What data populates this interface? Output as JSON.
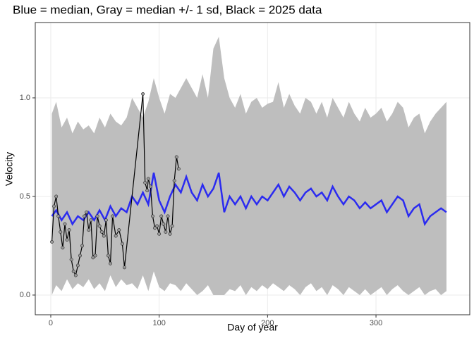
{
  "chart_data": {
    "type": "line",
    "title": "Blue = median, Gray = median +/- 1 sd, Black = 2025 data",
    "x_label": "Day of year",
    "y_label": "Velocity",
    "xlim": [
      -14.3,
      386.5
    ],
    "ylim": [
      -0.1,
      1.382
    ],
    "xticks": [
      0,
      100,
      200,
      300
    ],
    "yticks": [
      {
        "value": 0,
        "label": "0.0"
      },
      {
        "value": 0.5,
        "label": "0.5"
      },
      {
        "value": 1,
        "label": "1.0"
      }
    ],
    "grid": true,
    "days": [
      1,
      5,
      10,
      15,
      20,
      25,
      30,
      35,
      40,
      45,
      50,
      55,
      60,
      65,
      70,
      75,
      80,
      85,
      90,
      95,
      100,
      105,
      110,
      115,
      120,
      125,
      130,
      135,
      140,
      145,
      150,
      155,
      160,
      165,
      170,
      175,
      180,
      185,
      190,
      195,
      200,
      205,
      210,
      215,
      220,
      225,
      230,
      235,
      240,
      245,
      250,
      255,
      260,
      265,
      270,
      275,
      280,
      285,
      290,
      295,
      300,
      305,
      310,
      315,
      320,
      325,
      330,
      335,
      340,
      345,
      350,
      355,
      360,
      365
    ],
    "band": {
      "color": "#bebebe",
      "upper": [
        0.92,
        0.98,
        0.85,
        0.9,
        0.82,
        0.88,
        0.84,
        0.86,
        0.82,
        0.9,
        0.85,
        0.92,
        0.88,
        0.86,
        0.9,
        1.0,
        0.95,
        0.9,
        0.98,
        1.1,
        1.0,
        0.92,
        1.02,
        1.0,
        1.05,
        1.1,
        1.05,
        1.0,
        1.12,
        1.0,
        1.25,
        1.31,
        1.1,
        1.0,
        0.95,
        1.02,
        0.92,
        0.98,
        1.0,
        0.95,
        0.97,
        0.98,
        1.08,
        0.95,
        1.02,
        0.96,
        0.92,
        1.0,
        0.98,
        0.92,
        0.98,
        0.9,
        1.0,
        0.95,
        0.9,
        0.98,
        0.92,
        0.88,
        0.95,
        0.9,
        0.92,
        0.95,
        0.88,
        0.92,
        0.98,
        0.95,
        0.85,
        0.9,
        0.92,
        0.82,
        0.88,
        0.92,
        0.95,
        0.98
      ],
      "lower": [
        0.0,
        0.05,
        0.02,
        0.08,
        0.03,
        0.06,
        0.04,
        0.08,
        0.03,
        0.06,
        0.02,
        0.1,
        0.04,
        0.08,
        0.05,
        0.06,
        0.03,
        0.1,
        0.02,
        0.12,
        0.04,
        0.02,
        0.06,
        0.05,
        0.02,
        0.06,
        0.03,
        0.0,
        0.02,
        0.05,
        0.0,
        0.0,
        0.0,
        0.03,
        0.02,
        0.05,
        0.0,
        0.04,
        0.02,
        0.05,
        0.03,
        0.06,
        0.04,
        0.02,
        0.05,
        0.03,
        0.0,
        0.04,
        0.06,
        0.02,
        0.04,
        0.0,
        0.05,
        0.03,
        0.0,
        0.04,
        0.02,
        0.0,
        0.03,
        0.0,
        0.02,
        0.04,
        0.0,
        0.03,
        0.05,
        0.02,
        0.0,
        0.02,
        0.04,
        0.0,
        0.02,
        0.03,
        0.0,
        0.02
      ]
    },
    "median": {
      "color": "#2b2bf0",
      "values": [
        0.4,
        0.43,
        0.38,
        0.42,
        0.36,
        0.4,
        0.38,
        0.42,
        0.38,
        0.43,
        0.38,
        0.45,
        0.4,
        0.44,
        0.42,
        0.5,
        0.46,
        0.52,
        0.46,
        0.62,
        0.48,
        0.42,
        0.5,
        0.56,
        0.52,
        0.6,
        0.52,
        0.48,
        0.56,
        0.5,
        0.54,
        0.62,
        0.42,
        0.5,
        0.46,
        0.5,
        0.44,
        0.5,
        0.46,
        0.5,
        0.48,
        0.52,
        0.56,
        0.5,
        0.55,
        0.52,
        0.48,
        0.52,
        0.54,
        0.5,
        0.52,
        0.48,
        0.55,
        0.5,
        0.46,
        0.5,
        0.48,
        0.44,
        0.47,
        0.44,
        0.46,
        0.48,
        0.42,
        0.46,
        0.5,
        0.48,
        0.4,
        0.44,
        0.46,
        0.36,
        0.4,
        0.42,
        0.44,
        0.42
      ]
    },
    "observed": {
      "color": "#000000",
      "point_color": "#999999",
      "x": [
        1,
        3,
        5,
        7,
        9,
        11,
        13,
        15,
        17,
        19,
        21,
        23,
        25,
        27,
        29,
        31,
        33,
        35,
        37,
        39,
        41,
        43,
        45,
        47,
        49,
        51,
        53,
        55,
        57,
        60,
        63,
        66,
        68,
        85,
        87,
        89,
        90,
        92,
        94,
        96,
        98,
        100,
        102,
        104,
        106,
        108,
        110,
        112,
        114,
        116,
        118
      ],
      "values": [
        0.27,
        0.45,
        0.5,
        0.4,
        0.32,
        0.24,
        0.36,
        0.28,
        0.33,
        0.18,
        0.12,
        0.1,
        0.15,
        0.2,
        0.25,
        0.4,
        0.42,
        0.33,
        0.38,
        0.19,
        0.2,
        0.4,
        0.35,
        0.32,
        0.3,
        0.38,
        0.2,
        0.16,
        0.4,
        0.3,
        0.33,
        0.26,
        0.14,
        1.02,
        0.57,
        0.53,
        0.59,
        0.55,
        0.4,
        0.34,
        0.35,
        0.31,
        0.4,
        0.36,
        0.32,
        0.4,
        0.31,
        0.35,
        0.58,
        0.7,
        0.64
      ]
    }
  }
}
